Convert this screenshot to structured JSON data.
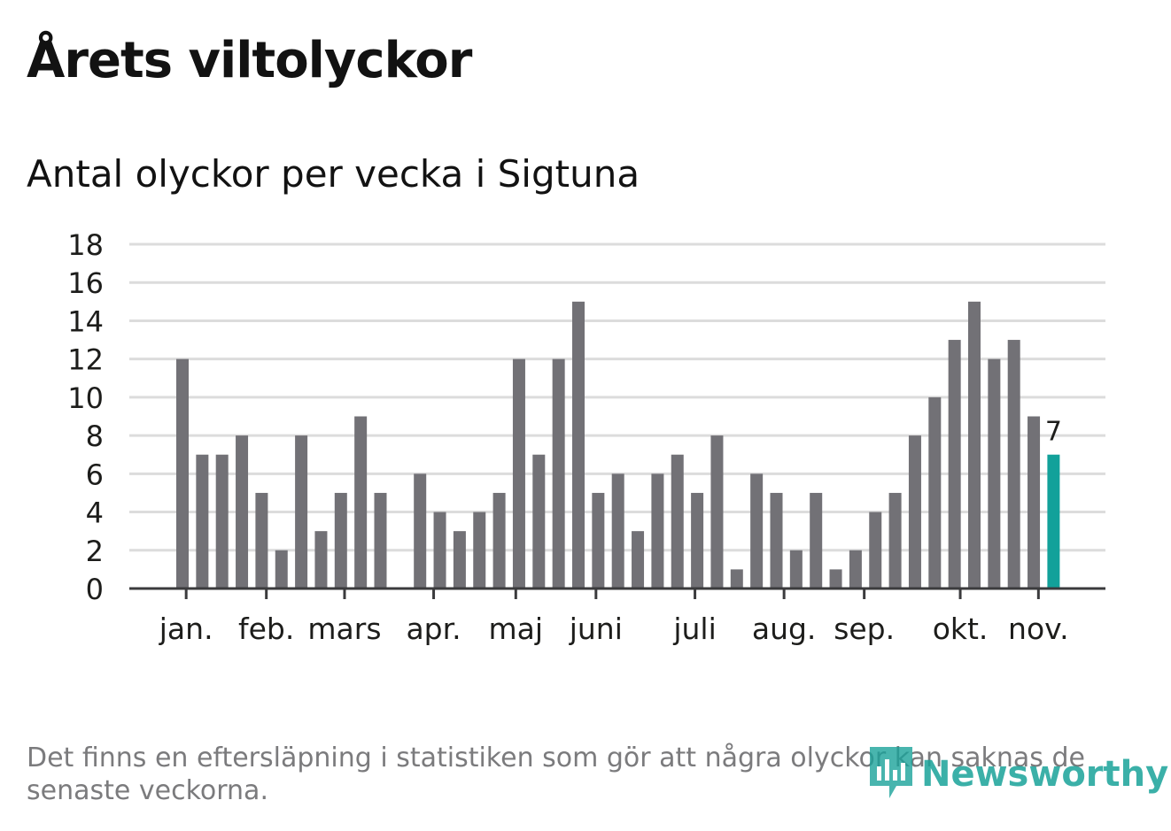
{
  "title": "Årets viltolyckor",
  "subtitle": "Antal olyckor per vecka i Sigtuna",
  "footnote": "Det finns en eftersläpning i statistiken som gör att några olyckor kan saknas de senaste veckorna.",
  "logo_text": "Newsworthy",
  "colors": {
    "bar": "#727176",
    "highlight": "#12a19a",
    "grid": "#dcdcdc",
    "axis": "#3b3b3d"
  },
  "chart_data": {
    "type": "bar",
    "title": "Årets viltolyckor",
    "subtitle": "Antal olyckor per vecka i Sigtuna",
    "ylim": [
      0,
      18
    ],
    "yticks": [
      0,
      2,
      4,
      6,
      8,
      10,
      12,
      14,
      16,
      18
    ],
    "values": [
      12,
      7,
      7,
      8,
      5,
      2,
      8,
      3,
      5,
      9,
      5,
      0,
      6,
      4,
      3,
      4,
      5,
      12,
      7,
      12,
      15,
      5,
      6,
      3,
      6,
      7,
      5,
      8,
      1,
      6,
      5,
      2,
      5,
      1,
      2,
      4,
      5,
      8,
      10,
      13,
      15,
      12,
      13,
      9,
      7
    ],
    "highlight_index": 44,
    "highlight_label": "7",
    "month_ticks": [
      {
        "label": "jan.",
        "week": 0.5
      },
      {
        "label": "feb.",
        "week": 4.55
      },
      {
        "label": "mars",
        "week": 8.5
      },
      {
        "label": "apr.",
        "week": 13.0
      },
      {
        "label": "maj",
        "week": 17.15
      },
      {
        "label": "juni",
        "week": 21.2
      },
      {
        "label": "juli",
        "week": 26.2
      },
      {
        "label": "aug.",
        "week": 30.7
      },
      {
        "label": "sep.",
        "week": 34.75
      },
      {
        "label": "okt.",
        "week": 39.6
      },
      {
        "label": "nov.",
        "week": 43.55
      }
    ]
  }
}
